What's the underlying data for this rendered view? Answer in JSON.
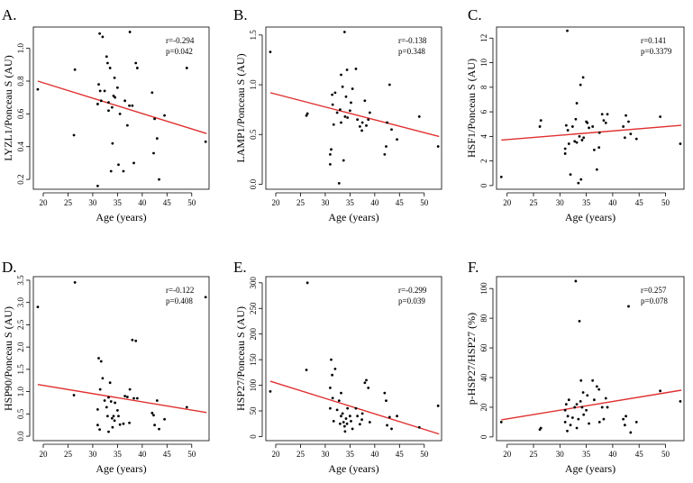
{
  "xlabel": "Age (years)",
  "line_color": "#e03030",
  "point_color": "#000000",
  "chart_data": [
    {
      "type": "scatter",
      "panel_label": "A.",
      "ylabel": "LYZL1/Ponceau S (AU)",
      "xlabel": "Age (years)",
      "xticks": [
        20,
        25,
        30,
        35,
        40,
        45,
        50
      ],
      "yticks": [
        0.2,
        0.4,
        0.6,
        0.8,
        1.0
      ],
      "ytick_labels": [
        "0.2",
        "0.4",
        "0.6",
        "0.8",
        "1.0"
      ],
      "xlim": [
        18,
        53.5
      ],
      "ylim": [
        0.14,
        1.13
      ],
      "stats": [
        "r=-0.294",
        "p=0.042"
      ],
      "fit": {
        "x": [
          18.9,
          53.0
        ],
        "y": [
          0.8,
          0.48
        ]
      },
      "x": [
        18.9,
        26.2,
        26.4,
        31.0,
        31.0,
        31.2,
        31.4,
        31.5,
        31.7,
        32.0,
        32.4,
        32.8,
        33.0,
        33.2,
        33.2,
        33.5,
        33.7,
        33.9,
        34.0,
        34.2,
        34.4,
        34.5,
        35.0,
        35.2,
        35.5,
        36.2,
        36.5,
        37.0,
        37.4,
        37.5,
        38.0,
        38.3,
        38.7,
        39.0,
        42.0,
        42.3,
        42.5,
        43.0,
        43.4,
        44.5,
        49.0,
        52.8
      ],
      "y": [
        0.75,
        0.47,
        0.87,
        0.16,
        0.66,
        0.78,
        1.09,
        0.74,
        0.68,
        1.07,
        0.74,
        0.95,
        0.91,
        0.62,
        0.67,
        0.88,
        0.25,
        0.64,
        0.42,
        0.71,
        0.82,
        0.7,
        0.76,
        0.29,
        0.6,
        0.25,
        0.68,
        0.53,
        0.65,
        1.1,
        0.65,
        0.3,
        0.91,
        0.88,
        0.73,
        0.36,
        0.57,
        0.45,
        0.2,
        0.59,
        0.88,
        0.43
      ]
    },
    {
      "type": "scatter",
      "panel_label": "B.",
      "ylabel": "LAMP1/Ponceau S (AU)",
      "xlabel": "Age (years)",
      "xticks": [
        20,
        25,
        30,
        35,
        40,
        45,
        50
      ],
      "yticks": [
        0.0,
        0.5,
        1.0,
        1.5
      ],
      "ytick_labels": [
        "0.0",
        "0.5",
        "1.0",
        "1.5"
      ],
      "xlim": [
        18,
        53.5
      ],
      "ylim": [
        -0.05,
        1.58
      ],
      "stats": [
        "r=-0.138",
        "p=0.348"
      ],
      "fit": {
        "x": [
          18.9,
          53.0
        ],
        "y": [
          0.92,
          0.48
        ]
      },
      "x": [
        18.9,
        26.2,
        26.4,
        31.0,
        31.0,
        31.2,
        31.4,
        31.5,
        31.7,
        32.0,
        32.4,
        32.8,
        33.0,
        33.2,
        33.2,
        33.5,
        33.7,
        33.9,
        34.0,
        34.2,
        34.4,
        34.5,
        35.0,
        35.2,
        35.5,
        36.2,
        36.5,
        37.0,
        37.4,
        37.5,
        38.0,
        38.3,
        38.7,
        39.0,
        42.0,
        42.3,
        42.5,
        43.0,
        43.4,
        44.5,
        49.0,
        52.8
      ],
      "y": [
        1.33,
        0.69,
        0.71,
        0.2,
        0.3,
        0.35,
        0.9,
        0.8,
        0.6,
        0.92,
        0.72,
        0.01,
        0.75,
        0.62,
        1.1,
        0.98,
        0.24,
        1.53,
        0.68,
        0.88,
        1.15,
        0.67,
        0.74,
        0.82,
        0.96,
        1.16,
        0.65,
        0.58,
        0.54,
        0.62,
        0.84,
        0.59,
        0.65,
        0.72,
        0.3,
        0.38,
        0.62,
        1.0,
        0.55,
        0.45,
        0.68,
        0.38
      ]
    },
    {
      "type": "scatter",
      "panel_label": "C.",
      "ylabel": "HSF1/Ponceau S (AU)",
      "xlabel": "Age (years)",
      "xticks": [
        20,
        25,
        30,
        35,
        40,
        45,
        50
      ],
      "yticks": [
        0,
        2,
        4,
        6,
        8,
        10,
        12
      ],
      "ytick_labels": [
        "0",
        "2",
        "4",
        "6",
        "8",
        "10",
        "12"
      ],
      "xlim": [
        18,
        53.5
      ],
      "ylim": [
        -0.3,
        12.9
      ],
      "stats": [
        "r=0.141",
        "p=0.3379"
      ],
      "fit": {
        "x": [
          18.9,
          53.0
        ],
        "y": [
          3.7,
          4.9
        ]
      },
      "x": [
        18.9,
        26.2,
        26.4,
        31.0,
        31.0,
        31.2,
        31.4,
        31.5,
        31.7,
        32.0,
        32.4,
        32.8,
        33.0,
        33.2,
        33.2,
        33.5,
        33.7,
        33.9,
        34.0,
        34.2,
        34.4,
        34.5,
        35.0,
        35.2,
        35.5,
        36.2,
        36.5,
        37.0,
        37.4,
        37.5,
        38.0,
        38.3,
        38.7,
        39.0,
        42.0,
        42.3,
        42.5,
        43.0,
        43.4,
        44.5,
        49.0,
        52.8
      ],
      "y": [
        0.7,
        4.8,
        5.3,
        2.6,
        3.0,
        4.9,
        12.6,
        4.5,
        3.4,
        0.9,
        4.8,
        3.6,
        5.4,
        6.7,
        3.5,
        0.2,
        4.0,
        8.2,
        0.5,
        3.7,
        8.8,
        3.9,
        5.2,
        5.1,
        4.7,
        4.8,
        2.9,
        1.3,
        3.1,
        4.3,
        5.8,
        5.3,
        5.1,
        5.8,
        4.8,
        3.9,
        5.7,
        5.2,
        4.2,
        3.8,
        5.6,
        3.4
      ]
    },
    {
      "type": "scatter",
      "panel_label": "D.",
      "ylabel": "HSP90/Ponceau S (AU)",
      "xlabel": "Age (years)",
      "xticks": [
        20,
        25,
        30,
        35,
        40,
        45,
        50
      ],
      "yticks": [
        0.0,
        0.5,
        1.0,
        1.5,
        2.0,
        2.5,
        3.0,
        3.5
      ],
      "ytick_labels": [
        "0.0",
        "0.5",
        "1.0",
        "1.5",
        "2.0",
        "2.5",
        "3.0",
        "3.5"
      ],
      "xlim": [
        18,
        53.5
      ],
      "ylim": [
        -0.1,
        3.58
      ],
      "stats": [
        "r=-0.122",
        "p=0.408"
      ],
      "fit": {
        "x": [
          18.9,
          53.0
        ],
        "y": [
          1.16,
          0.53
        ]
      },
      "x": [
        18.9,
        26.2,
        26.4,
        31.0,
        31.0,
        31.2,
        31.4,
        31.5,
        31.7,
        32.0,
        32.4,
        32.8,
        33.0,
        33.2,
        33.2,
        33.5,
        33.7,
        33.9,
        34.0,
        34.2,
        34.4,
        34.5,
        35.0,
        35.2,
        35.5,
        36.2,
        36.5,
        37.0,
        37.4,
        37.5,
        38.0,
        38.3,
        38.7,
        39.0,
        42.0,
        42.3,
        42.5,
        43.0,
        43.4,
        44.5,
        49.0,
        52.8
      ],
      "y": [
        2.9,
        0.92,
        3.45,
        0.25,
        0.6,
        1.75,
        0.15,
        1.05,
        1.68,
        1.3,
        0.8,
        0.65,
        0.45,
        0.1,
        0.87,
        1.2,
        0.78,
        0.4,
        0.2,
        0.45,
        0.35,
        0.75,
        0.58,
        0.45,
        0.26,
        0.28,
        0.9,
        0.88,
        0.3,
        1.05,
        2.16,
        0.85,
        2.14,
        0.85,
        0.52,
        0.47,
        0.25,
        0.8,
        0.16,
        0.38,
        0.65,
        3.12
      ]
    },
    {
      "type": "scatter",
      "panel_label": "E.",
      "ylabel": "HSP27/Ponceau S (AU)",
      "xlabel": "Age (years)",
      "xticks": [
        20,
        25,
        30,
        35,
        40,
        45,
        50
      ],
      "yticks": [
        0,
        50,
        100,
        150,
        200,
        250,
        300
      ],
      "ytick_labels": [
        "0",
        "50",
        "100",
        "150",
        "200",
        "250",
        "300"
      ],
      "xlim": [
        18,
        53.5
      ],
      "ylim": [
        -8,
        312
      ],
      "stats": [
        "r=-0.299",
        "p=0.039"
      ],
      "fit": {
        "x": [
          18.9,
          53.0
        ],
        "y": [
          108,
          5
        ]
      },
      "x": [
        18.9,
        26.2,
        26.4,
        31.0,
        31.0,
        31.2,
        31.4,
        31.5,
        31.7,
        32.0,
        32.4,
        32.8,
        33.0,
        33.2,
        33.2,
        33.5,
        33.7,
        33.9,
        34.0,
        34.2,
        34.4,
        34.5,
        35.0,
        35.2,
        35.5,
        36.2,
        36.5,
        37.0,
        37.4,
        37.5,
        38.0,
        38.3,
        38.7,
        39.0,
        42.0,
        42.3,
        42.5,
        43.0,
        43.4,
        44.5,
        49.0,
        52.8
      ],
      "y": [
        88,
        130,
        300,
        55,
        95,
        150,
        120,
        75,
        30,
        132,
        52,
        70,
        25,
        40,
        85,
        45,
        28,
        20,
        10,
        35,
        25,
        55,
        40,
        30,
        15,
        55,
        40,
        24,
        33,
        45,
        105,
        110,
        95,
        28,
        85,
        70,
        22,
        38,
        15,
        40,
        18,
        60
      ]
    },
    {
      "type": "scatter",
      "panel_label": "F.",
      "ylabel": "p-HSP27/HSP27 (%)",
      "xlabel": "Age (years)",
      "xticks": [
        20,
        25,
        30,
        35,
        40,
        45,
        50
      ],
      "yticks": [
        0,
        20,
        40,
        60,
        80,
        100
      ],
      "ytick_labels": [
        "0",
        "20",
        "40",
        "60",
        "80",
        "100"
      ],
      "xlim": [
        18,
        53.5
      ],
      "ylim": [
        -2.5,
        108
      ],
      "stats": [
        "r=0.257",
        "p=0.078"
      ],
      "fit": {
        "x": [
          18.9,
          53.0
        ],
        "y": [
          11.5,
          31.5
        ]
      },
      "x": [
        18.9,
        26.2,
        26.4,
        31.0,
        31.0,
        31.2,
        31.4,
        31.5,
        31.7,
        32.0,
        32.4,
        32.8,
        33.0,
        33.2,
        33.2,
        33.5,
        33.7,
        33.9,
        34.0,
        34.2,
        34.4,
        34.5,
        35.0,
        35.2,
        35.5,
        36.2,
        36.5,
        37.0,
        37.4,
        37.5,
        38.0,
        38.3,
        38.7,
        39.0,
        42.0,
        42.3,
        42.5,
        43.0,
        43.4,
        44.5,
        49.0,
        52.8
      ],
      "y": [
        10,
        5,
        6,
        10,
        18,
        22,
        4,
        14,
        25,
        8,
        13,
        20,
        105,
        22,
        6,
        12,
        78,
        24,
        38,
        20,
        30,
        15,
        18,
        28,
        9,
        38,
        25,
        34,
        32,
        10,
        20,
        12,
        26,
        20,
        12,
        8,
        14,
        88,
        3,
        10,
        31,
        24
      ]
    }
  ]
}
